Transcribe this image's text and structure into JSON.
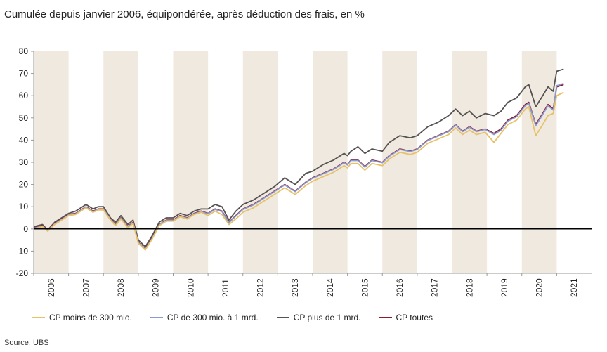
{
  "subtitle": "Cumulée depuis janvier 2006, équipondérée, après déduction des frais, en %",
  "source": "Source: UBS",
  "chart_data": {
    "type": "line",
    "ylim": [
      -20,
      80
    ],
    "yticks": [
      80,
      70,
      60,
      50,
      40,
      30,
      20,
      10,
      0,
      -10,
      -20
    ],
    "x_categories": [
      "2006",
      "2007",
      "2008",
      "2009",
      "2010",
      "2011",
      "2012",
      "2013",
      "2014",
      "2015",
      "2016",
      "2017",
      "2018",
      "2019",
      "2020",
      "2021"
    ],
    "shaded_years": [
      "2006",
      "2008",
      "2010",
      "2012",
      "2014",
      "2016",
      "2018",
      "2020"
    ],
    "colors": {
      "shade": "#efe9df",
      "zero_line": "#000000",
      "axis": "#999999"
    },
    "series": [
      {
        "name": "CP plus de 1 mrd.",
        "color": "#575252",
        "x": [
          2006.0,
          2006.25,
          2006.4,
          2006.6,
          2006.8,
          2007.0,
          2007.2,
          2007.4,
          2007.5,
          2007.7,
          2007.85,
          2008.0,
          2008.2,
          2008.35,
          2008.5,
          2008.7,
          2008.85,
          2009.0,
          2009.2,
          2009.4,
          2009.6,
          2009.8,
          2010.0,
          2010.2,
          2010.4,
          2010.6,
          2010.8,
          2011.0,
          2011.2,
          2011.4,
          2011.6,
          2011.8,
          2012.0,
          2012.3,
          2012.6,
          2012.9,
          2013.2,
          2013.5,
          2013.8,
          2014.0,
          2014.3,
          2014.6,
          2014.9,
          2015.0,
          2015.1,
          2015.3,
          2015.5,
          2015.7,
          2016.0,
          2016.2,
          2016.5,
          2016.8,
          2017.0,
          2017.3,
          2017.6,
          2017.9,
          2018.1,
          2018.3,
          2018.5,
          2018.7,
          2018.95,
          2019.2,
          2019.4,
          2019.6,
          2019.85,
          2020.0,
          2020.1,
          2020.2,
          2020.4,
          2020.6,
          2020.75,
          2020.9,
          2021.0,
          2021.2
        ],
        "values": [
          1,
          2,
          -0.5,
          3,
          5,
          7,
          8,
          10,
          11,
          9,
          10,
          10,
          5,
          3,
          6,
          2,
          4,
          -5,
          -8,
          -3,
          3,
          5,
          5,
          7,
          6,
          8,
          9,
          9,
          11,
          10,
          4,
          8,
          11,
          13,
          16,
          19,
          23,
          20,
          25,
          26,
          29,
          31,
          34,
          33,
          35,
          37,
          34,
          36,
          35,
          39,
          42,
          41,
          42,
          46,
          48,
          51,
          54,
          51,
          53,
          50,
          52,
          51,
          53,
          57,
          59,
          62,
          64,
          65,
          55,
          60,
          64,
          62,
          71,
          72
        ]
      },
      {
        "name": "CP toutes",
        "color": "#8a1c2b",
        "x": [
          2006.0,
          2006.25,
          2006.4,
          2006.6,
          2006.8,
          2007.0,
          2007.2,
          2007.4,
          2007.5,
          2007.7,
          2007.85,
          2008.0,
          2008.2,
          2008.35,
          2008.5,
          2008.7,
          2008.85,
          2009.0,
          2009.2,
          2009.4,
          2009.6,
          2009.8,
          2010.0,
          2010.2,
          2010.4,
          2010.6,
          2010.8,
          2011.0,
          2011.2,
          2011.4,
          2011.6,
          2011.8,
          2012.0,
          2012.3,
          2012.6,
          2012.9,
          2013.2,
          2013.5,
          2013.8,
          2014.0,
          2014.3,
          2014.6,
          2014.9,
          2015.0,
          2015.1,
          2015.3,
          2015.5,
          2015.7,
          2016.0,
          2016.2,
          2016.5,
          2016.8,
          2017.0,
          2017.3,
          2017.6,
          2017.9,
          2018.1,
          2018.3,
          2018.5,
          2018.7,
          2018.95,
          2019.2,
          2019.4,
          2019.6,
          2019.85,
          2020.0,
          2020.1,
          2020.2,
          2020.4,
          2020.6,
          2020.75,
          2020.9,
          2021.0,
          2021.2
        ],
        "values": [
          0.5,
          1.5,
          -0.5,
          2.5,
          4.5,
          6.5,
          7,
          9,
          10,
          8,
          9,
          9,
          4.5,
          2,
          5,
          1,
          3,
          -6,
          -9,
          -4,
          2,
          4,
          4,
          6,
          5,
          7,
          8,
          7,
          9,
          8,
          3,
          6,
          9,
          11,
          14,
          17,
          20,
          17,
          21,
          23,
          25,
          27,
          30,
          29,
          31,
          31,
          28,
          31,
          30,
          33,
          36,
          35,
          36,
          40,
          42,
          44,
          47,
          44,
          46,
          44,
          45,
          43,
          45,
          49,
          51,
          54,
          56,
          57,
          47,
          52,
          56,
          54,
          64,
          65
        ]
      },
      {
        "name": "CP de 300 mio. à 1 mrd.",
        "color": "#8a9bcf",
        "x": [
          2006.0,
          2006.25,
          2006.4,
          2006.6,
          2006.8,
          2007.0,
          2007.2,
          2007.4,
          2007.5,
          2007.7,
          2007.85,
          2008.0,
          2008.2,
          2008.35,
          2008.5,
          2008.7,
          2008.85,
          2009.0,
          2009.2,
          2009.4,
          2009.6,
          2009.8,
          2010.0,
          2010.2,
          2010.4,
          2010.6,
          2010.8,
          2011.0,
          2011.2,
          2011.4,
          2011.6,
          2011.8,
          2012.0,
          2012.3,
          2012.6,
          2012.9,
          2013.2,
          2013.5,
          2013.8,
          2014.0,
          2014.3,
          2014.6,
          2014.9,
          2015.0,
          2015.1,
          2015.3,
          2015.5,
          2015.7,
          2016.0,
          2016.2,
          2016.5,
          2016.8,
          2017.0,
          2017.3,
          2017.6,
          2017.9,
          2018.1,
          2018.3,
          2018.5,
          2018.7,
          2018.95,
          2019.2,
          2019.4,
          2019.6,
          2019.85,
          2020.0,
          2020.1,
          2020.2,
          2020.4,
          2020.6,
          2020.75,
          2020.9,
          2021.0,
          2021.2
        ],
        "values": [
          0.3,
          1.3,
          -0.7,
          2.3,
          4.3,
          6.3,
          6.8,
          8.8,
          9.8,
          7.8,
          8.8,
          8.8,
          4.3,
          1.8,
          4.8,
          0.8,
          2.8,
          -6.2,
          -9.2,
          -4.2,
          1.8,
          3.8,
          3.8,
          5.8,
          4.8,
          6.8,
          7.8,
          6.8,
          8.8,
          7.8,
          2.8,
          5.8,
          8.8,
          10.8,
          13.8,
          16.8,
          19.8,
          16.8,
          20.8,
          22.8,
          24.8,
          26.8,
          29.8,
          28.8,
          30.8,
          30.8,
          27.8,
          30.8,
          29.8,
          32.8,
          35.8,
          34.8,
          35.8,
          39.8,
          41.8,
          43.8,
          46.8,
          43.8,
          45.8,
          43.8,
          44.8,
          42.5,
          44.5,
          48.5,
          50.5,
          53.5,
          55.5,
          56.5,
          46.5,
          51.5,
          55.5,
          53.5,
          64.5,
          65.5
        ]
      },
      {
        "name": "CP moins de 300 mio.",
        "color": "#e8c167",
        "x": [
          2006.0,
          2006.25,
          2006.4,
          2006.6,
          2006.8,
          2007.0,
          2007.2,
          2007.4,
          2007.5,
          2007.7,
          2007.85,
          2008.0,
          2008.2,
          2008.35,
          2008.5,
          2008.7,
          2008.85,
          2009.0,
          2009.2,
          2009.4,
          2009.6,
          2009.8,
          2010.0,
          2010.2,
          2010.4,
          2010.6,
          2010.8,
          2011.0,
          2011.2,
          2011.4,
          2011.6,
          2011.8,
          2012.0,
          2012.3,
          2012.6,
          2012.9,
          2013.2,
          2013.5,
          2013.8,
          2014.0,
          2014.3,
          2014.6,
          2014.9,
          2015.0,
          2015.1,
          2015.3,
          2015.5,
          2015.7,
          2016.0,
          2016.2,
          2016.5,
          2016.8,
          2017.0,
          2017.3,
          2017.6,
          2017.9,
          2018.1,
          2018.3,
          2018.5,
          2018.7,
          2018.95,
          2019.2,
          2019.4,
          2019.6,
          2019.85,
          2020.0,
          2020.1,
          2020.2,
          2020.4,
          2020.6,
          2020.75,
          2020.9,
          2021.0,
          2021.2
        ],
        "values": [
          0,
          1,
          -1,
          2,
          4,
          6,
          6.5,
          8.5,
          9.5,
          7.5,
          8.5,
          8.5,
          4,
          1.5,
          4.5,
          0.5,
          2.5,
          -6.5,
          -9.5,
          -4.5,
          1.5,
          3.5,
          3.5,
          5.5,
          4.5,
          6.5,
          7.5,
          6,
          8,
          6.5,
          2,
          4.5,
          7.5,
          9.5,
          12.5,
          15.5,
          18.5,
          15.5,
          19.5,
          21.5,
          23.5,
          25.5,
          28.5,
          27.5,
          29.5,
          29.5,
          26.5,
          29.5,
          28.5,
          31.5,
          34.5,
          33.5,
          34.5,
          38.5,
          40.5,
          42.5,
          45.5,
          42.5,
          44.5,
          42.5,
          43.5,
          39,
          43,
          47,
          49,
          52,
          54,
          55,
          42,
          47,
          51,
          52,
          60,
          61.5
        ]
      }
    ]
  },
  "legend": [
    {
      "label": "CP moins de 300 mio.",
      "color": "#e8c167"
    },
    {
      "label": "CP de 300 mio. à 1 mrd.",
      "color": "#8a9bcf"
    },
    {
      "label": "CP plus de 1 mrd.",
      "color": "#575252"
    },
    {
      "label": "CP toutes",
      "color": "#8a1c2b"
    }
  ]
}
